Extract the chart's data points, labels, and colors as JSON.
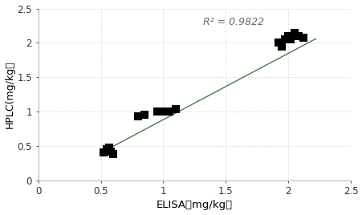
{
  "scatter_points": [
    [
      0.52,
      0.4
    ],
    [
      0.55,
      0.45
    ],
    [
      0.57,
      0.47
    ],
    [
      0.58,
      0.42
    ],
    [
      0.6,
      0.38
    ],
    [
      0.8,
      0.93
    ],
    [
      0.85,
      0.95
    ],
    [
      0.95,
      1.0
    ],
    [
      0.98,
      1.0
    ],
    [
      1.0,
      1.0
    ],
    [
      1.02,
      1.0
    ],
    [
      1.05,
      1.0
    ],
    [
      1.1,
      1.04
    ],
    [
      1.92,
      2.0
    ],
    [
      1.95,
      1.95
    ],
    [
      1.97,
      2.05
    ],
    [
      2.0,
      2.1
    ],
    [
      2.02,
      2.05
    ],
    [
      2.05,
      2.15
    ],
    [
      2.08,
      2.1
    ],
    [
      2.12,
      2.08
    ]
  ],
  "line_x": [
    0.5,
    2.22
  ],
  "r2_text": "R² = 0.9822",
  "r2_x": 1.32,
  "r2_y": 2.38,
  "xlabel": "ELISA（mg/kg）",
  "ylabel": "HPLC(mg/kg）",
  "xlim": [
    0,
    2.5
  ],
  "ylim": [
    0,
    2.5
  ],
  "xticks": [
    0,
    0.5,
    1.0,
    1.5,
    2.0,
    2.5
  ],
  "yticks": [
    0,
    0.5,
    1.0,
    1.5,
    2.0,
    2.5
  ],
  "marker_color": "#000000",
  "line_color": "#4a7a4a",
  "grid_color": "#c8c8c8",
  "background_color": "#ffffff",
  "marker_size": 7,
  "line_slope": 0.966,
  "line_intercept": -0.085
}
